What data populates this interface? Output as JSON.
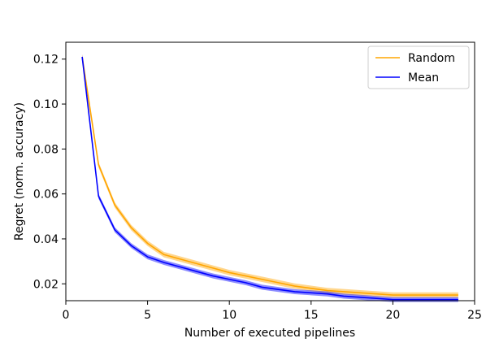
{
  "chart_data": {
    "type": "line",
    "title": "",
    "xlabel": "Number of executed pipelines",
    "ylabel": "Regret (norm. accuracy)",
    "xlim": [
      0,
      25
    ],
    "ylim": [
      0.0125,
      0.1275
    ],
    "x_ticks": [
      0,
      5,
      10,
      15,
      20,
      25
    ],
    "x_tick_labels": [
      "0",
      "5",
      "10",
      "15",
      "20",
      "25"
    ],
    "y_ticks": [
      0.02,
      0.04,
      0.06,
      0.08,
      0.1,
      0.12
    ],
    "y_tick_labels": [
      "0.02",
      "0.04",
      "0.06",
      "0.08",
      "0.10",
      "0.12"
    ],
    "grid": false,
    "legend": "top-right",
    "x": [
      1,
      2,
      3,
      4,
      5,
      6,
      7,
      8,
      9,
      10,
      11,
      12,
      13,
      14,
      15,
      16,
      17,
      18,
      19,
      20,
      21,
      22,
      23,
      24
    ],
    "series": [
      {
        "name": "Random",
        "color": "#FFA500",
        "values": [
          0.121,
          0.073,
          0.055,
          0.045,
          0.038,
          0.033,
          0.031,
          0.029,
          0.027,
          0.025,
          0.0235,
          0.022,
          0.0205,
          0.019,
          0.018,
          0.017,
          0.0165,
          0.016,
          0.0155,
          0.015,
          0.015,
          0.015,
          0.015,
          0.015
        ],
        "band": 0.0012
      },
      {
        "name": "Mean",
        "color": "#0000FF",
        "values": [
          0.121,
          0.059,
          0.044,
          0.037,
          0.032,
          0.0295,
          0.0275,
          0.0255,
          0.0235,
          0.022,
          0.0205,
          0.0185,
          0.0175,
          0.0165,
          0.016,
          0.0155,
          0.0145,
          0.014,
          0.0135,
          0.013,
          0.013,
          0.013,
          0.013,
          0.013
        ],
        "band": 0.0011
      }
    ]
  }
}
